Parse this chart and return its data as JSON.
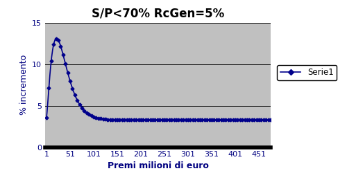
{
  "title": "S/P<70% RcGen=5%",
  "xlabel": "Premi milioni di euro",
  "ylabel": "% incremento",
  "ylim": [
    0,
    15
  ],
  "xlim": [
    1,
    476
  ],
  "xticks": [
    1,
    51,
    101,
    151,
    201,
    251,
    301,
    351,
    401,
    451
  ],
  "yticks": [
    0,
    5,
    10,
    15
  ],
  "line_color": "#00008B",
  "marker": "D",
  "marker_size": 2.5,
  "legend_label": "Serie1",
  "plot_bg_color": "#C0C0C0",
  "fig_bg_color": "#FFFFFF",
  "title_fontsize": 12,
  "axis_label_fontsize": 9,
  "tick_fontsize": 8,
  "curve_A": 9.8,
  "curve_alpha": 1.6,
  "curve_beta": 0.072,
  "curve_C": 3.3,
  "curve_peak_x": 22.2
}
